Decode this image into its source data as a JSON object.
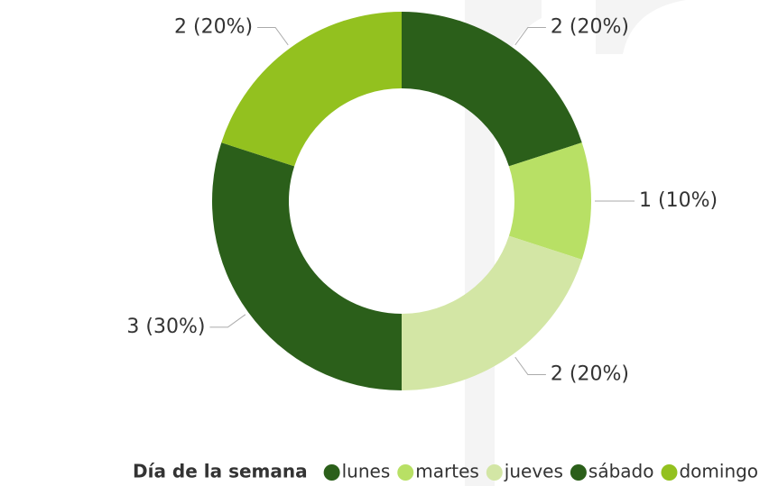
{
  "chart_data": {
    "type": "pie",
    "legend_title": "Día de la semana",
    "categories": [
      "lunes",
      "martes",
      "jueves",
      "sábado",
      "domingo"
    ],
    "values": [
      2,
      1,
      2,
      3,
      2
    ],
    "value_labels": [
      "2 (20%)",
      "1 (10%)",
      "2 (20%)",
      "3 (30%)",
      "2 (20%)"
    ],
    "colors": [
      "#2b5f1a",
      "#b8e065",
      "#d3e6a5",
      "#2b5f1a",
      "#93c11f"
    ],
    "legend": "bottom"
  }
}
